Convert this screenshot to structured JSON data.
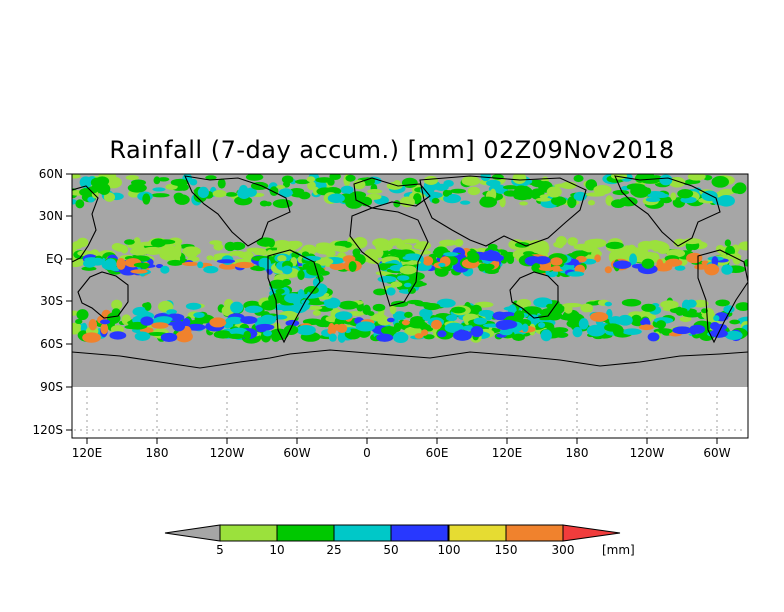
{
  "title": "Rainfall (7-day accum.) [mm] 02Z09Nov2018",
  "lat_ticks": [
    "60N",
    "30N",
    "EQ",
    "30S",
    "60S",
    "90S",
    "120S"
  ],
  "lon_ticks": [
    "120E",
    "180",
    "120W",
    "60W",
    "0",
    "60E",
    "120E",
    "180",
    "120W",
    "60W"
  ],
  "colorbar": {
    "unit": "[mm]",
    "labels": [
      "5",
      "10",
      "25",
      "50",
      "100",
      "150",
      "300"
    ],
    "colors": [
      "#a6a6a6",
      "#9be13c",
      "#00c800",
      "#00c8c8",
      "#2838ff",
      "#e6dc32",
      "#f0822d",
      "#f03c3c"
    ]
  },
  "colors": {
    "dry": "#a6a6a6",
    "land_outline": "#000000",
    "grid": "#a0a0a0"
  }
}
